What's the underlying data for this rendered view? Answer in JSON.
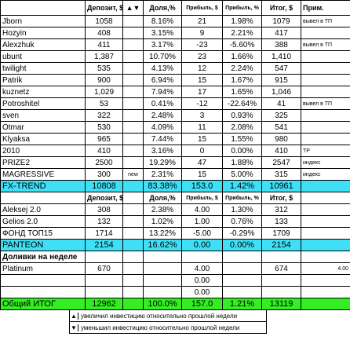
{
  "table": {
    "header": [
      null,
      "Депозит, $",
      "▲▼",
      "Доля,%",
      "Прибыль, $",
      "Прибыль, %",
      "Итог, $",
      "Прим."
    ],
    "rows": [
      [
        "Jborn",
        "1058",
        null,
        "8.16%",
        "21",
        "1.98%",
        "1079",
        "вывел в ТП"
      ],
      [
        "Hozyin",
        "408",
        null,
        "3.15%",
        "9",
        "2.21%",
        "417",
        null
      ],
      [
        "Alexzhuk",
        "411",
        null,
        "3.17%",
        "-23",
        "-5.60%",
        "388",
        "вывел в ТП"
      ],
      [
        "ubunt",
        "1,387",
        null,
        "10.70%",
        "23",
        "1.66%",
        "1,410",
        null
      ],
      [
        "twilight",
        "535",
        null,
        "4.13%",
        "12",
        "2.24%",
        "547",
        null
      ],
      [
        "Patrik",
        "900",
        null,
        "6.94%",
        "15",
        "1.67%",
        "915",
        null
      ],
      [
        "kuznetz",
        "1,029",
        null,
        "7.94%",
        "17",
        "1.65%",
        "1,046",
        null
      ],
      [
        "Potroshitel",
        "53",
        null,
        "0.41%",
        "-12",
        "-22.64%",
        "41",
        "вывел в ТП"
      ],
      [
        "sven",
        "322",
        null,
        "2.48%",
        "3",
        "0.93%",
        "325",
        null
      ],
      [
        "Otmar",
        "530",
        null,
        "4.09%",
        "11",
        "2.08%",
        "541",
        null
      ],
      [
        "Klyaksa",
        "965",
        null,
        "7.44%",
        "15",
        "1.55%",
        "980",
        null
      ],
      [
        "2010",
        "410",
        null,
        "3.16%",
        "0",
        "0.00%",
        "410",
        "ТР"
      ],
      [
        "PRIZE2",
        "2500",
        null,
        "19.29%",
        "47",
        "1.88%",
        "2547",
        "индекс"
      ],
      [
        "MAGRESSIVE",
        "300",
        "new",
        "2.31%",
        "15",
        "5.00%",
        "315",
        "индекс"
      ],
      [
        "FX-TREND",
        "10808",
        null,
        "83.38%",
        "153.0",
        "1.42%",
        "10961",
        null
      ],
      [
        null,
        "Депозит, $",
        null,
        "Доля,%",
        "Прибыль, $",
        "Прибыль, %",
        "Итог, $",
        null
      ],
      [
        "Aleksej 2.0",
        "308",
        null,
        "2.38%",
        "4.00",
        "1.30%",
        "312",
        null
      ],
      [
        "Gelios 2.0",
        "132",
        null,
        "1.02%",
        "1.00",
        "0.76%",
        "133",
        null
      ],
      [
        "ФОНД ТОП15",
        "1714",
        null,
        "13.22%",
        "-5.00",
        "-0.29%",
        "1709",
        null
      ],
      [
        "PANTEON",
        "2154",
        null,
        "16.62%",
        "0.00",
        "0.00%",
        "2154",
        null
      ],
      [
        "Доливки на неделе",
        null,
        null,
        null,
        null,
        null,
        null,
        null
      ],
      [
        "Platinum",
        "670",
        null,
        null,
        "4.00",
        null,
        "674",
        "4.00"
      ],
      [
        null,
        null,
        null,
        null,
        "0.00",
        null,
        null,
        null
      ],
      [
        null,
        null,
        null,
        null,
        "0.00",
        null,
        null,
        null
      ],
      [
        "Общий ИТОГ",
        "12962",
        null,
        "100.0%",
        "157.0",
        "1.21%",
        "13119",
        null
      ]
    ]
  },
  "legend": [
    {
      "symbol": "▲",
      "text": "увеличил инвестицию относительно прошлой недели"
    },
    {
      "symbol": "▼",
      "text": "уменьшил инвестицию относительно прошлой недели"
    }
  ]
}
